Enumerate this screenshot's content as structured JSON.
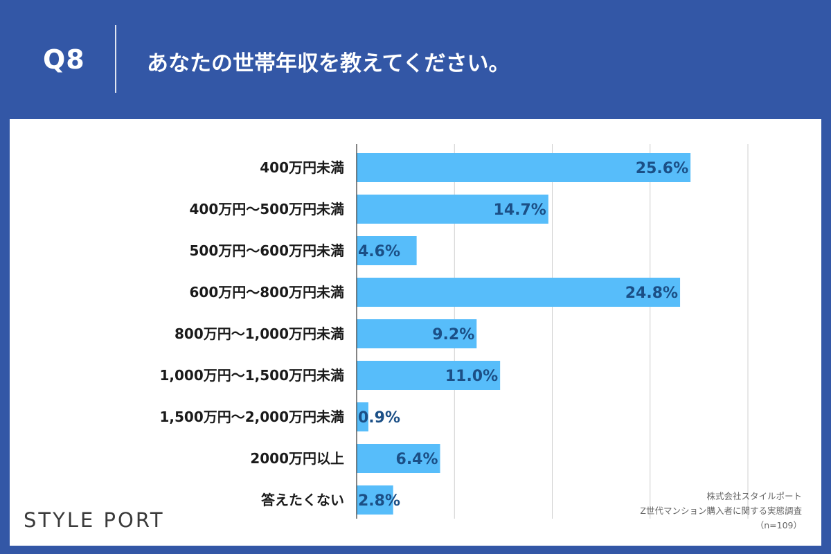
{
  "header": {
    "question_label": "Q8",
    "question_text": "あなたの世帯年収を教えてください。"
  },
  "chart_data": {
    "type": "bar",
    "orientation": "horizontal",
    "categories": [
      "400万円未満",
      "400万円～500万円未満",
      "500万円～600万円未満",
      "600万円～800万円未満",
      "800万円～1,000万円未満",
      "1,000万円～1,500万円未満",
      "1,500万円～2,000万円未満",
      "2000万円以上",
      "答えたくない"
    ],
    "values": [
      25.6,
      14.7,
      4.6,
      24.8,
      9.2,
      11.0,
      0.9,
      6.4,
      2.8
    ],
    "value_labels": [
      "25.6%",
      "14.7%",
      "4.6%",
      "24.8%",
      "9.2%",
      "11.0%",
      "0.9%",
      "6.4%",
      "2.8%"
    ],
    "xlim": [
      0,
      30
    ],
    "gridlines": [
      0,
      7.5,
      15,
      22.5,
      30
    ],
    "grid": true,
    "legend": "none",
    "bar_color": "#57bdfa",
    "label_color": "#1b4f86"
  },
  "footer": {
    "brand": "STYLE PORT",
    "source_lines": [
      "株式会社スタイルポート",
      "Z世代マンション購入者に関する実態調査",
      "（n=109）"
    ]
  }
}
